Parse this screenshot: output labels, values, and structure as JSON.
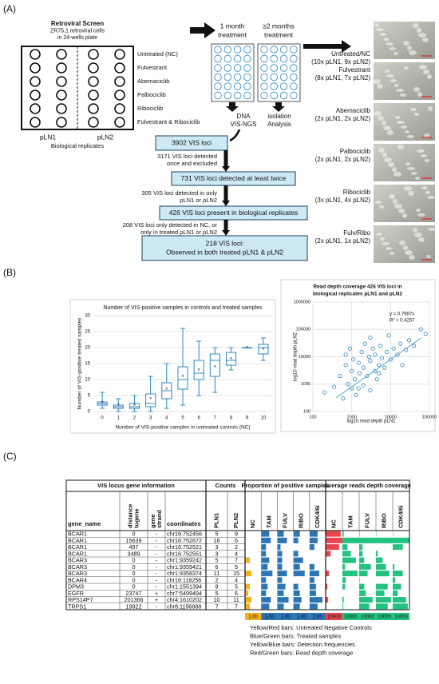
{
  "panel_labels": [
    "(A)",
    "(B)",
    "(C)"
  ],
  "diagram": {
    "plate_title": [
      "Retroviral Screen",
      "ZR75.1 retroviral cells",
      "in 24-wells plate"
    ],
    "treatments": [
      "Untreated (NC)",
      "Fulvestrant",
      "Abemaciclib",
      "Palbociclib",
      "Ribociclib",
      "Fulvestrant & Ribociclib"
    ],
    "replicates": [
      "pLN1",
      "pLN2"
    ],
    "replicates_label": "Biological replicates",
    "steps": [
      [
        "1 month",
        "treatment"
      ],
      [
        "≥2 months",
        "treatment"
      ]
    ],
    "analysis": [
      "DNA",
      "isolation",
      "VIS-NGS",
      "Analysis"
    ],
    "filter_boxes": [
      [
        "3902 VIS loci"
      ],
      [
        "731 VIS loci detected at least twice"
      ],
      [
        "426 VIS loci present in biological replicates"
      ],
      [
        "218 VIS loci:",
        "Observed in both treated pLN1 & pLN2"
      ]
    ],
    "exclusions": [
      [
        "3171 VIS loci detected",
        "once and excluded"
      ],
      [
        "305 VIS loci detected in only",
        "pLN1 or pLN2"
      ],
      [
        "208 VIS loci only detected in NC, or",
        "only in treated pLN1 or pLN2"
      ]
    ],
    "micrographs": [
      [
        "Untreated/NC",
        "(10x pLN1, 9x pLN2)"
      ],
      [
        "Fulvestrant",
        "(8x pLN1, 7x pLN2)"
      ],
      [
        "Abemaciclib",
        "(2x pLN1, 2x pLN2)"
      ],
      [
        "Palbociclib",
        "(2x pLN1, 2x pLN2)"
      ],
      [
        "Ribociclib",
        "(3x pLN1, 4x pLN2)"
      ],
      [
        "Fulv/Ribo",
        "(2x pLN1, 1x pLN2)"
      ]
    ]
  },
  "chart_data": [
    {
      "type": "box",
      "title": "Number of VIS-positive samples in controls and treated samples",
      "x_label": "Number of VIS-positive samples in untreated controls (NC)",
      "y_label": "Number of VIS-positive treated samples",
      "categories": [
        "0",
        "1",
        "2",
        "3",
        "4",
        "5",
        "6",
        "7",
        "8",
        "9",
        "10"
      ],
      "color": "#2f87c3",
      "boxes": [
        {
          "min": 1,
          "q1": 2,
          "median": 2.5,
          "q3": 3,
          "max": 6,
          "mean": 2.8
        },
        {
          "min": 0,
          "q1": 1,
          "median": 1.5,
          "q3": 2,
          "max": 4,
          "mean": 2
        },
        {
          "min": 0,
          "q1": 1,
          "median": 1.5,
          "q3": 2.5,
          "max": 5,
          "mean": 2
        },
        {
          "min": 0,
          "q1": 1.5,
          "median": 2.5,
          "q3": 5.5,
          "max": 11,
          "mean": 4
        },
        {
          "min": 1,
          "q1": 4,
          "median": 6.5,
          "q3": 9,
          "max": 15,
          "mean": 7
        },
        {
          "min": 2,
          "q1": 7,
          "median": 10,
          "q3": 14,
          "max": 26,
          "mean": 11
        },
        {
          "min": 5,
          "q1": 10,
          "median": 12,
          "q3": 16,
          "max": 22,
          "mean": 13
        },
        {
          "min": 6,
          "q1": 11,
          "median": 16,
          "q3": 18,
          "max": 20,
          "mean": 14
        },
        {
          "min": 13,
          "q1": 14.5,
          "median": 16,
          "q3": 18.5,
          "max": 20,
          "mean": 16.5
        },
        {
          "min": 20,
          "q1": 20,
          "median": 20,
          "q3": 20,
          "max": 20,
          "mean": 20
        },
        {
          "min": 16,
          "q1": 18,
          "median": 20,
          "q3": 21,
          "max": 23,
          "mean": 19.5
        }
      ],
      "ylim": [
        0,
        30
      ],
      "yticks": [
        0,
        5,
        10,
        15,
        20,
        25,
        30
      ],
      "grid": true
    },
    {
      "type": "scatter",
      "title": [
        "Read depth coverage 426 VIS loci in",
        "biological replicates pLN1 and pLN2"
      ],
      "x_label": "log10 read depth pLN1",
      "y_label": "log10 read depth pLN2",
      "annotations": [
        "y = 0.7987x",
        "R² = 0.4257"
      ],
      "color": "#2f87c3",
      "log_x": true,
      "log_y": true,
      "grid": true,
      "x": [
        200,
        350,
        500,
        600,
        700,
        800,
        900,
        1000,
        1000,
        1100,
        1200,
        1300,
        1500,
        1600,
        1800,
        2000,
        2000,
        2200,
        2500,
        2800,
        3000,
        3000,
        3500,
        4000,
        4000,
        4500,
        5000,
        5500,
        6000,
        7000,
        8000,
        9000,
        10000,
        12000,
        15000,
        18000,
        20000,
        25000,
        30000,
        40000,
        60000,
        80000,
        700,
        1500,
        3000,
        5000
      ],
      "y": [
        500,
        800,
        2000,
        300,
        5000,
        1000,
        20000,
        700,
        3000,
        8000,
        1500,
        400,
        6000,
        2500,
        15000,
        900,
        4000,
        30000,
        2000,
        10000,
        600,
        7000,
        20000,
        3000,
        12000,
        1500,
        5000,
        25000,
        9000,
        4000,
        15000,
        60000,
        8000,
        20000,
        12000,
        30000,
        5000,
        18000,
        40000,
        25000,
        100000,
        70000,
        12000,
        700,
        50000,
        2500
      ],
      "trendline": {
        "x": [
          400,
          60000
        ],
        "y": [
          320,
          47920
        ]
      },
      "xlim": [
        100,
        100000
      ],
      "xticks": [
        100,
        1000,
        10000,
        100000
      ],
      "ylim": [
        100,
        1000000
      ],
      "yticks": [
        100,
        1000,
        10000,
        100000,
        1000000
      ]
    }
  ],
  "table": {
    "groups": [
      "VIS locus gene information",
      "Counts",
      "Proportion of positive samples",
      "Average reads depth coverage"
    ],
    "columns": [
      [
        "gene_name"
      ],
      [
        "distance",
        "togene"
      ],
      [
        "gene",
        "strand"
      ],
      [
        "coordinates"
      ],
      [
        "PLN1"
      ],
      [
        "PLN2"
      ]
    ],
    "sub_columns": [
      "NC",
      "TAM",
      "FULV",
      "RIBO",
      "CDK4/6i"
    ],
    "rows": [
      [
        "BCAR1",
        "0",
        "-",
        "chr16:752456",
        "5",
        "9"
      ],
      [
        "BCAR1",
        "15639",
        "-",
        "chr16:752672",
        "16",
        "6"
      ],
      [
        "BCAR1",
        "497",
        "-",
        "chr16:752521",
        "3",
        "2"
      ],
      [
        "BCAR1",
        "3489",
        "-",
        "chr16:752551",
        "3",
        "4"
      ],
      [
        "BCAR3",
        "0",
        "-",
        "chr1:9359242",
        "5",
        "7"
      ],
      [
        "BCAR3",
        "0",
        "-",
        "chr1:9359421",
        "6",
        "5"
      ],
      [
        "BCAR3",
        "0",
        "-",
        "chr1:9358374",
        "11",
        "15"
      ],
      [
        "BCAR4",
        "0",
        "-",
        "chr16:118256",
        "2",
        "4"
      ],
      [
        "DPM3",
        "0",
        "-",
        "chr1:1551394",
        "9",
        "5"
      ],
      [
        "EGFR",
        "23747",
        "+",
        "chr7:5499494",
        "5",
        "6"
      ],
      [
        "RPS14P7",
        "201366",
        "+",
        "chr4:1610202",
        "10",
        "11"
      ],
      [
        "TRPS1",
        "19922",
        "-",
        "chr8:1156888",
        "7",
        "7"
      ]
    ],
    "proportion": [
      [
        0,
        0.5,
        0.4,
        0.4,
        0.5
      ],
      [
        0,
        0.6,
        0.6,
        0.3,
        0.5
      ],
      [
        0,
        0.3,
        0.2,
        0,
        0.3
      ],
      [
        0,
        0.3,
        0.3,
        0.3,
        0
      ],
      [
        0.3,
        0.5,
        0.3,
        0.6,
        0
      ],
      [
        0,
        0.4,
        0.3,
        0.4,
        0.3
      ],
      [
        0.4,
        0.7,
        0.6,
        0.7,
        0.6
      ],
      [
        0,
        0.3,
        0.3,
        0,
        0.3
      ],
      [
        0.3,
        0.4,
        0.5,
        0.3,
        0.4
      ],
      [
        0.2,
        0.3,
        0.4,
        0.4,
        0.4
      ],
      [
        0.4,
        0.6,
        0.7,
        0.5,
        0.8
      ],
      [
        0.3,
        0.5,
        0.4,
        0.4,
        0.5
      ]
    ],
    "depth": [
      [
        9000,
        800,
        300,
        200,
        200
      ],
      [
        10000,
        10000,
        10000,
        10000,
        10000
      ],
      [
        8000,
        3000,
        2000,
        0,
        6000
      ],
      [
        3000,
        5000,
        2000,
        1000,
        0
      ],
      [
        200,
        8000,
        3000,
        4000,
        0
      ],
      [
        0,
        1500,
        7000,
        6000,
        1000
      ],
      [
        2000,
        9000,
        5000,
        8000,
        6000
      ],
      [
        0,
        2000,
        300,
        0,
        1500
      ],
      [
        1000,
        1500,
        3000,
        7000,
        5000
      ],
      [
        0,
        0,
        4000,
        5000,
        3000
      ],
      [
        1500,
        800,
        8000,
        9000,
        8000
      ],
      [
        0,
        500,
        6000,
        7000,
        9000
      ]
    ],
    "proportion_colors": [
      "#f2b21b",
      "#2e75b6"
    ],
    "depth_colors": [
      "#e8464e",
      "#23c27f"
    ],
    "scale": [
      {
        "value": 1,
        "label": "1.00"
      },
      {
        "value": 1,
        "label": "1.00"
      },
      {
        "value": 1,
        "label": "1.00"
      },
      {
        "value": 1,
        "label": "1.00"
      },
      {
        "value": 1,
        "label": "1.00"
      },
      10000,
      10000,
      10000,
      10000,
      10000
    ],
    "notes": [
      "Yellow/Red bars: Untreated Negative Controls",
      "Blue/Green bars: Treated samples",
      "Yellow/Blue bars: Detection frequencies",
      "Red/Green bars: Read depth coverage"
    ]
  }
}
